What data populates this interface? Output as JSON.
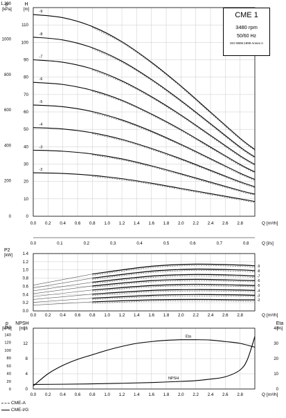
{
  "chart_data": [
    {
      "type": "line",
      "panel": "head",
      "title": "CME 1",
      "speed": "3480 rpm",
      "frequency": "50/60 Hz",
      "standard": "ISO 9906:1999 Annex A",
      "left_axis_label": "p",
      "left_axis_unit": "[kPa]",
      "ylabel": "H",
      "y_unit": "[m]",
      "xlabel": "Q",
      "x_unit": "[m³/h]",
      "xlim": [
        0,
        3.0
      ],
      "ylim": [
        0,
        120
      ],
      "x_ticks": [
        "0.0",
        "0.2",
        "0.4",
        "0.6",
        "0.8",
        "1.0",
        "1.2",
        "1.4",
        "1.6",
        "1.8",
        "2.0",
        "2.2",
        "2.4",
        "2.6",
        "2.8"
      ],
      "y_ticks_m": [
        "0",
        "10",
        "20",
        "30",
        "40",
        "50",
        "60",
        "70",
        "80",
        "90",
        "100",
        "110"
      ],
      "y_ticks_kpa": [
        "0",
        "200",
        "400",
        "600",
        "800",
        "1000",
        "1,200"
      ],
      "grid": true,
      "series": [
        {
          "name": "-2",
          "x": [
            0.0,
            0.4,
            0.8,
            1.2,
            1.6,
            2.0,
            2.4,
            2.8,
            3.0
          ],
          "values": [
            25,
            24.6,
            23.5,
            21.6,
            19,
            16,
            13,
            10,
            8.5
          ]
        },
        {
          "name": "-3",
          "x": [
            0.0,
            0.4,
            0.8,
            1.2,
            1.6,
            2.0,
            2.4,
            2.8,
            3.0
          ],
          "values": [
            38,
            37.4,
            35.8,
            33,
            29,
            24.4,
            19.6,
            14.8,
            12.7
          ]
        },
        {
          "name": "-4",
          "x": [
            0.0,
            0.4,
            0.8,
            1.2,
            1.6,
            2.0,
            2.4,
            2.8,
            3.0
          ],
          "values": [
            51,
            50.2,
            48,
            44.2,
            39,
            33,
            26.4,
            19.8,
            17
          ]
        },
        {
          "name": "-5",
          "x": [
            0.0,
            0.4,
            0.8,
            1.2,
            1.6,
            2.0,
            2.4,
            2.8,
            3.0
          ],
          "values": [
            64,
            63,
            60.2,
            55.4,
            48.9,
            41.3,
            33.1,
            24.8,
            21.2
          ]
        },
        {
          "name": "-6",
          "x": [
            0.0,
            0.4,
            0.8,
            1.2,
            1.6,
            2.0,
            2.4,
            2.8,
            3.0
          ],
          "values": [
            77,
            75.8,
            72.4,
            66.7,
            58.8,
            49.8,
            39.8,
            29.8,
            25.5
          ]
        },
        {
          "name": "-7",
          "x": [
            0.0,
            0.4,
            0.8,
            1.2,
            1.6,
            2.0,
            2.4,
            2.8,
            3.0
          ],
          "values": [
            90,
            88.6,
            84.7,
            77.9,
            68.8,
            58.2,
            46.5,
            34.8,
            29.8
          ]
        },
        {
          "name": "-8",
          "x": [
            0.0,
            0.4,
            0.8,
            1.2,
            1.6,
            2.0,
            2.4,
            2.8,
            3.0
          ],
          "values": [
            103,
            101.4,
            96.9,
            89.2,
            78.7,
            66.5,
            53.2,
            39.8,
            34.1
          ]
        },
        {
          "name": "-9",
          "x": [
            0.0,
            0.4,
            0.8,
            1.2,
            1.6,
            2.0,
            2.4,
            2.8,
            3.0
          ],
          "values": [
            116,
            114.2,
            109.1,
            100.4,
            88.6,
            74.9,
            59.9,
            44.9,
            38.4
          ]
        }
      ]
    },
    {
      "type": "line",
      "panel": "power",
      "ylabel": "P2",
      "y_unit": "[kW]",
      "xlabel": "Q",
      "x_unit": "[m³/h]",
      "top_axis_label": "Q",
      "top_axis_unit": "[l/s]",
      "top_ticks": [
        "0.0",
        "0.1",
        "0.2",
        "0.3",
        "0.4",
        "0.5",
        "0.6",
        "0.7",
        "0.8"
      ],
      "xlim": [
        0,
        3.0
      ],
      "ylim": [
        0,
        1.4
      ],
      "x_ticks": [
        "0.0",
        "0.2",
        "0.4",
        "0.6",
        "0.8",
        "1.0",
        "1.2",
        "1.4",
        "1.6",
        "1.8",
        "2.0",
        "2.2",
        "2.4",
        "2.6",
        "2.8"
      ],
      "y_ticks": [
        "0.0",
        "0.2",
        "0.4",
        "0.6",
        "0.8",
        "1.0",
        "1.2",
        "1.4"
      ],
      "grid": true,
      "series": [
        {
          "name": "-2",
          "x": [
            0.0,
            0.8,
            1.6,
            2.2,
            2.8,
            3.0
          ],
          "values": [
            0.14,
            0.22,
            0.27,
            0.28,
            0.27,
            0.27
          ]
        },
        {
          "name": "-3",
          "x": [
            0.0,
            0.8,
            1.6,
            2.2,
            2.8,
            3.0
          ],
          "values": [
            0.21,
            0.31,
            0.38,
            0.4,
            0.39,
            0.38
          ]
        },
        {
          "name": "-4",
          "x": [
            0.0,
            0.8,
            1.6,
            2.2,
            2.8,
            3.0
          ],
          "values": [
            0.28,
            0.41,
            0.5,
            0.52,
            0.51,
            0.5
          ]
        },
        {
          "name": "-5",
          "x": [
            0.0,
            0.8,
            1.6,
            2.2,
            2.8,
            3.0
          ],
          "values": [
            0.35,
            0.51,
            0.62,
            0.65,
            0.63,
            0.62
          ]
        },
        {
          "name": "-6",
          "x": [
            0.0,
            0.8,
            1.6,
            2.2,
            2.8,
            3.0
          ],
          "values": [
            0.42,
            0.61,
            0.74,
            0.77,
            0.75,
            0.74
          ]
        },
        {
          "name": "-7",
          "x": [
            0.0,
            0.8,
            1.6,
            2.2,
            2.8,
            3.0
          ],
          "values": [
            0.49,
            0.7,
            0.85,
            0.89,
            0.87,
            0.85
          ]
        },
        {
          "name": "-8",
          "x": [
            0.0,
            0.8,
            1.6,
            2.2,
            2.8,
            3.0
          ],
          "values": [
            0.56,
            0.8,
            0.97,
            1.02,
            1.0,
            0.98
          ]
        },
        {
          "name": "-9",
          "x": [
            0.0,
            0.8,
            1.6,
            2.2,
            2.8,
            3.0
          ],
          "values": [
            0.63,
            0.9,
            1.09,
            1.14,
            1.12,
            1.1
          ]
        }
      ]
    },
    {
      "type": "line",
      "panel": "npsh-efficiency",
      "left_axis_label": "p",
      "left_axis_unit": "[kPa]",
      "ylabel": "NPSH",
      "y_unit": "[m]",
      "y2label": "Eta",
      "y2_unit": "[%]",
      "xlabel": "Q",
      "x_unit": "[m³/h]",
      "xlim": [
        0,
        3.0
      ],
      "ylim": [
        0,
        16
      ],
      "y2lim": [
        0,
        40
      ],
      "x_ticks": [
        "0.0",
        "0.2",
        "0.4",
        "0.6",
        "0.8",
        "1.0",
        "1.2",
        "1.4",
        "1.6",
        "1.8",
        "2.0",
        "2.2",
        "2.4",
        "2.6",
        "2.8"
      ],
      "y_ticks_m": [
        "0",
        "4",
        "8",
        "12",
        "16"
      ],
      "y_ticks_kpa": [
        "0",
        "20",
        "40",
        "60",
        "80",
        "100",
        "120",
        "140",
        "160"
      ],
      "y2_ticks": [
        "0",
        "10",
        "20",
        "30",
        "40"
      ],
      "grid": true,
      "series": [
        {
          "name": "Eta",
          "axis": "right",
          "x": [
            0.0,
            0.2,
            0.4,
            0.6,
            0.8,
            1.0,
            1.2,
            1.4,
            1.6,
            1.8,
            2.0,
            2.2,
            2.4,
            2.6,
            2.8,
            3.0
          ],
          "values": [
            2,
            10,
            15.5,
            19.5,
            22.5,
            25.5,
            28,
            30,
            31.2,
            32,
            32.4,
            32.4,
            32.2,
            31.2,
            30,
            27.5
          ]
        },
        {
          "name": "NPSH",
          "axis": "left",
          "x": [
            0.0,
            0.4,
            0.8,
            1.2,
            1.6,
            2.0,
            2.2,
            2.4,
            2.6,
            2.8,
            2.9,
            3.0
          ],
          "values": [
            1.2,
            1.25,
            1.35,
            1.5,
            1.7,
            2.0,
            2.2,
            2.6,
            3.2,
            5,
            7.8,
            13.8
          ]
        }
      ]
    }
  ],
  "legend": [
    {
      "label": "CME-A",
      "style": "dashed"
    },
    {
      "label": "CME-I/G",
      "style": "solid"
    }
  ]
}
